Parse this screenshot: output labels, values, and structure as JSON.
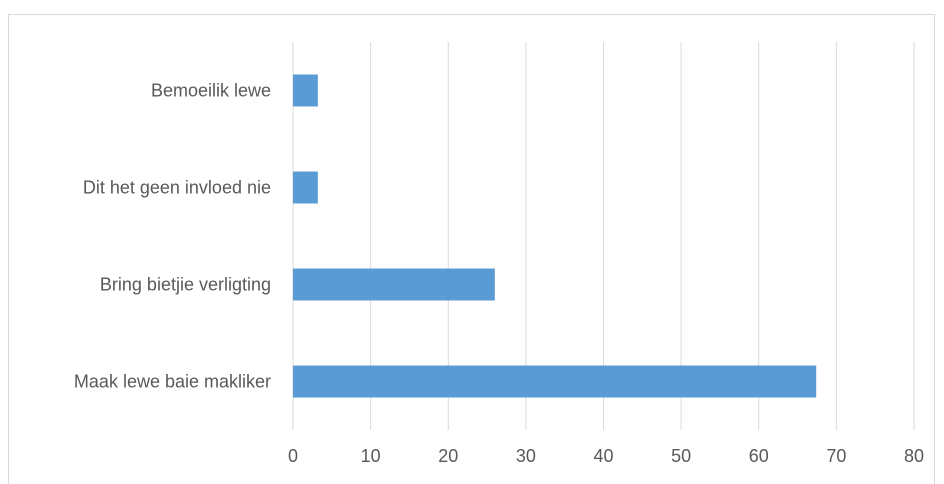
{
  "chart_data": {
    "type": "bar",
    "orientation": "horizontal",
    "categories": [
      "Bemoeilik lewe",
      "Dit het geen invloed nie",
      "Bring bietjie verligting",
      "Maak lewe baie makliker"
    ],
    "values": [
      3.2,
      3.2,
      26.0,
      67.4
    ],
    "xlim": [
      0,
      80
    ],
    "xticks": [
      "0",
      "10",
      "20",
      "30",
      "40",
      "50",
      "60",
      "70",
      "80"
    ],
    "title": "",
    "xlabel": "",
    "ylabel": "",
    "grid": "vertical",
    "legend": "none",
    "bar_color": "#5b9bd5",
    "grid_color": "#d9d9d9",
    "text_color": "#595959"
  }
}
